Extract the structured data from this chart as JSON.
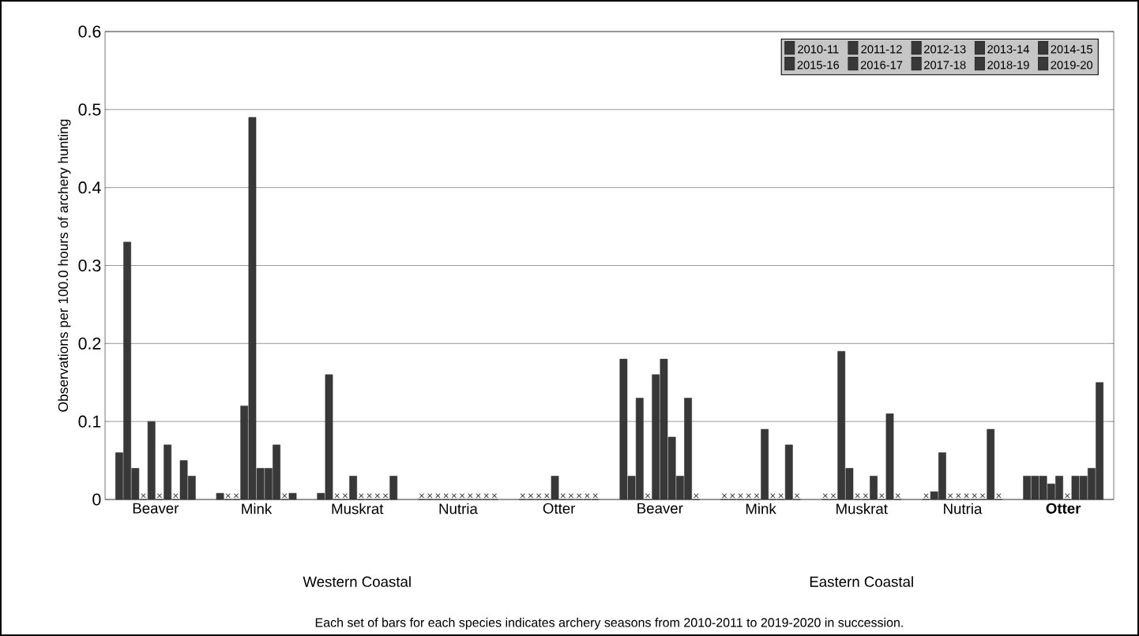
{
  "chart_data": {
    "type": "bar",
    "ylabel": "Observations per 100.0 hours of archery hunting",
    "categories": [
      "Beaver",
      "Mink",
      "Muskrat",
      "Nutria",
      "Otter",
      "Beaver",
      "Mink",
      "Muskrat",
      "Nutria",
      "**Otter**"
    ],
    "series": [
      {
        "name": "2010-11",
        "color": "#383838",
        "values": [
          0.06,
          0.008,
          0.008,
          0,
          0,
          0.18,
          0,
          0,
          0,
          0.03
        ],
        "value_labels": [
          null,
          null,
          null,
          "×",
          "×",
          null,
          "×",
          "×",
          "×",
          null
        ]
      },
      {
        "name": "2011-12",
        "color": "#383838",
        "values": [
          0.33,
          0,
          0.16,
          0,
          0,
          0.03,
          0,
          0,
          0.01,
          0.03
        ],
        "value_labels": [
          null,
          "×",
          null,
          "×",
          "×",
          null,
          "×",
          "×",
          null,
          null
        ]
      },
      {
        "name": "2012-13",
        "color": "#383838",
        "values": [
          0.04,
          0,
          0,
          0,
          0,
          0.13,
          0,
          0.19,
          0.06,
          0.03
        ],
        "value_labels": [
          null,
          "×",
          "×",
          "×",
          "×",
          null,
          "×",
          null,
          null,
          null
        ]
      },
      {
        "name": "2013-14",
        "color": "#383838",
        "values": [
          0,
          0.12,
          0,
          0,
          0,
          0,
          0,
          0.04,
          0,
          0.02
        ],
        "value_labels": [
          "×",
          null,
          "×",
          "×",
          "×",
          "×",
          "×",
          null,
          "×",
          null
        ]
      },
      {
        "name": "2014-15",
        "color": "#383838",
        "values": [
          0.1,
          0.49,
          0.03,
          0,
          0.03,
          0.16,
          0,
          0,
          0,
          0.03
        ],
        "value_labels": [
          null,
          null,
          null,
          "×",
          null,
          null,
          "×",
          "×",
          "×",
          null
        ]
      },
      {
        "name": "2015-16",
        "color": "#383838",
        "values": [
          0,
          0.04,
          0,
          0,
          0,
          0.18,
          0.09,
          0,
          0,
          0
        ],
        "value_labels": [
          "×",
          null,
          "×",
          "×",
          "×",
          null,
          null,
          "×",
          "×",
          "×"
        ]
      },
      {
        "name": "2016-17",
        "color": "#383838",
        "values": [
          0.07,
          0.04,
          0,
          0,
          0,
          0.08,
          0,
          0.03,
          0,
          0.03
        ],
        "value_labels": [
          null,
          null,
          "×",
          "×",
          "×",
          null,
          "×",
          null,
          "×",
          null
        ]
      },
      {
        "name": "2017-18",
        "color": "#383838",
        "values": [
          0,
          0.07,
          0,
          0,
          0,
          0.03,
          0,
          0,
          0,
          0.03
        ],
        "value_labels": [
          "×",
          null,
          "×",
          "×",
          "×",
          null,
          "×",
          "×",
          "×",
          null
        ]
      },
      {
        "name": "2018-19",
        "color": "#383838",
        "values": [
          0.05,
          0,
          0,
          0,
          0,
          0.13,
          0.07,
          0.11,
          0.09,
          0.04
        ],
        "value_labels": [
          null,
          "×",
          "×",
          "×",
          "×",
          null,
          null,
          null,
          null,
          null
        ]
      },
      {
        "name": "2019-20",
        "color": "#383838",
        "values": [
          0.03,
          0.008,
          0.03,
          0,
          0,
          0,
          0,
          0,
          0,
          0.15
        ],
        "value_labels": [
          null,
          null,
          null,
          "×",
          "×",
          "×",
          "×",
          "×",
          "×",
          null
        ]
      }
    ],
    "ylim": [
      0,
      0.6
    ],
    "yticks": [
      0,
      0.1,
      0.2,
      0.3,
      0.4,
      0.5,
      0.6
    ],
    "grid": "y",
    "legend": "top right",
    "annotations": [
      "Western Coastal",
      "Eastern Coastal",
      "Each set of bars for each species indicates archery seasons from 2010-2011 to 2019-2020 in succession."
    ]
  }
}
